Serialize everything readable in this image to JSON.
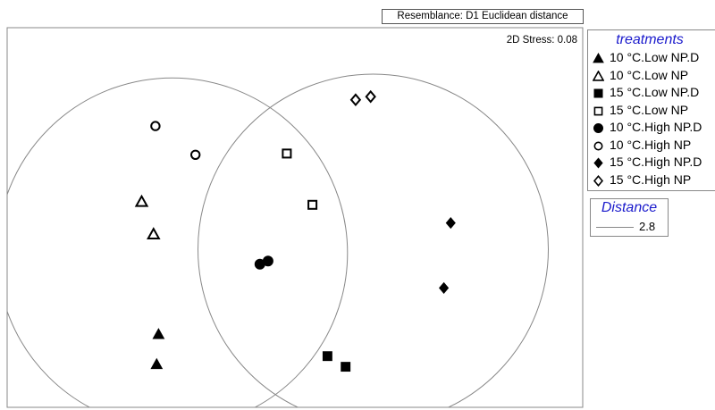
{
  "resemblance_label": "Resemblance: D1 Euclidean distance",
  "chart_data": {
    "type": "scatter",
    "plot_type": "nMDS ordination",
    "stress_label": "2D Stress: 0.08",
    "axes_visible": false,
    "grid": false,
    "legend_position": "right",
    "legend_title": "treatments",
    "series": [
      {
        "name": "10 °C.Low NP.D",
        "marker": "triangle-filled",
        "points": [
          [
            -2.18,
            -1.86
          ],
          [
            -2.21,
            -2.34
          ]
        ]
      },
      {
        "name": "10 °C.Low NP",
        "marker": "triangle-open",
        "points": [
          [
            -2.45,
            0.26
          ],
          [
            -2.26,
            -0.26
          ]
        ]
      },
      {
        "name": "15 °C.Low NP.D",
        "marker": "square-filled",
        "points": [
          [
            0.52,
            -2.21
          ],
          [
            0.81,
            -2.38
          ]
        ]
      },
      {
        "name": "15 °C.Low NP",
        "marker": "square-open",
        "points": [
          [
            -0.13,
            1.03
          ],
          [
            0.28,
            0.21
          ]
        ]
      },
      {
        "name": "10 °C.High NP.D",
        "marker": "circle-filled",
        "points": [
          [
            -0.56,
            -0.74
          ],
          [
            -0.43,
            -0.69
          ]
        ]
      },
      {
        "name": "10 °C.High NP",
        "marker": "circle-open",
        "points": [
          [
            -2.23,
            1.47
          ],
          [
            -1.59,
            1.01
          ]
        ]
      },
      {
        "name": "15 °C.High NP.D",
        "marker": "diamond-filled",
        "points": [
          [
            2.49,
            -0.08
          ],
          [
            2.38,
            -1.12
          ]
        ]
      },
      {
        "name": "15 °C.High NP",
        "marker": "diamond-open",
        "points": [
          [
            0.97,
            1.89
          ],
          [
            1.21,
            1.94
          ]
        ]
      }
    ],
    "distance_circles": [
      {
        "center": [
          -1.96,
          -0.56
        ],
        "radius": 2.8
      },
      {
        "center": [
          1.25,
          -0.5
        ],
        "radius": 2.8
      }
    ],
    "distance_legend": {
      "title": "Distance",
      "value": "2.8"
    }
  }
}
